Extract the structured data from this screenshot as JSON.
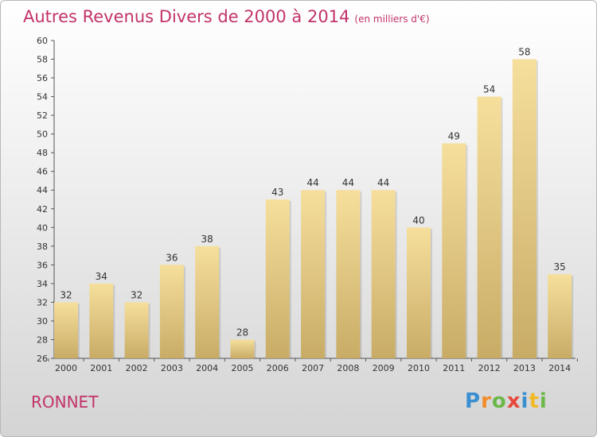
{
  "title": "Autres Revenus Divers de 2000 à 2014",
  "subtitle": "(en milliers d'€)",
  "commune": "RONNET",
  "logo": "Proxiti",
  "logo_letters": [
    "P",
    "r",
    "o",
    "x",
    "i",
    "t",
    "i"
  ],
  "colors": {
    "title": "#c2336a",
    "bar_light": "#f6df9c",
    "bar_dark": "#c8ac66",
    "axis": "#555555"
  },
  "chart_data": {
    "type": "bar",
    "title": "Autres Revenus Divers de 2000 à 2014",
    "subtitle": "(en milliers d'€)",
    "categories": [
      "2000",
      "2001",
      "2002",
      "2003",
      "2004",
      "2005",
      "2006",
      "2007",
      "2008",
      "2009",
      "2010",
      "2011",
      "2012",
      "2013",
      "2014"
    ],
    "values": [
      32,
      34,
      32,
      36,
      38,
      28,
      43,
      44,
      44,
      44,
      40,
      49,
      54,
      58,
      35
    ],
    "ylim": [
      26,
      60
    ],
    "yticks": [
      26,
      28,
      30,
      32,
      34,
      36,
      38,
      40,
      42,
      44,
      46,
      48,
      50,
      52,
      54,
      56,
      58,
      60
    ],
    "grid": false,
    "data_labels": true
  }
}
